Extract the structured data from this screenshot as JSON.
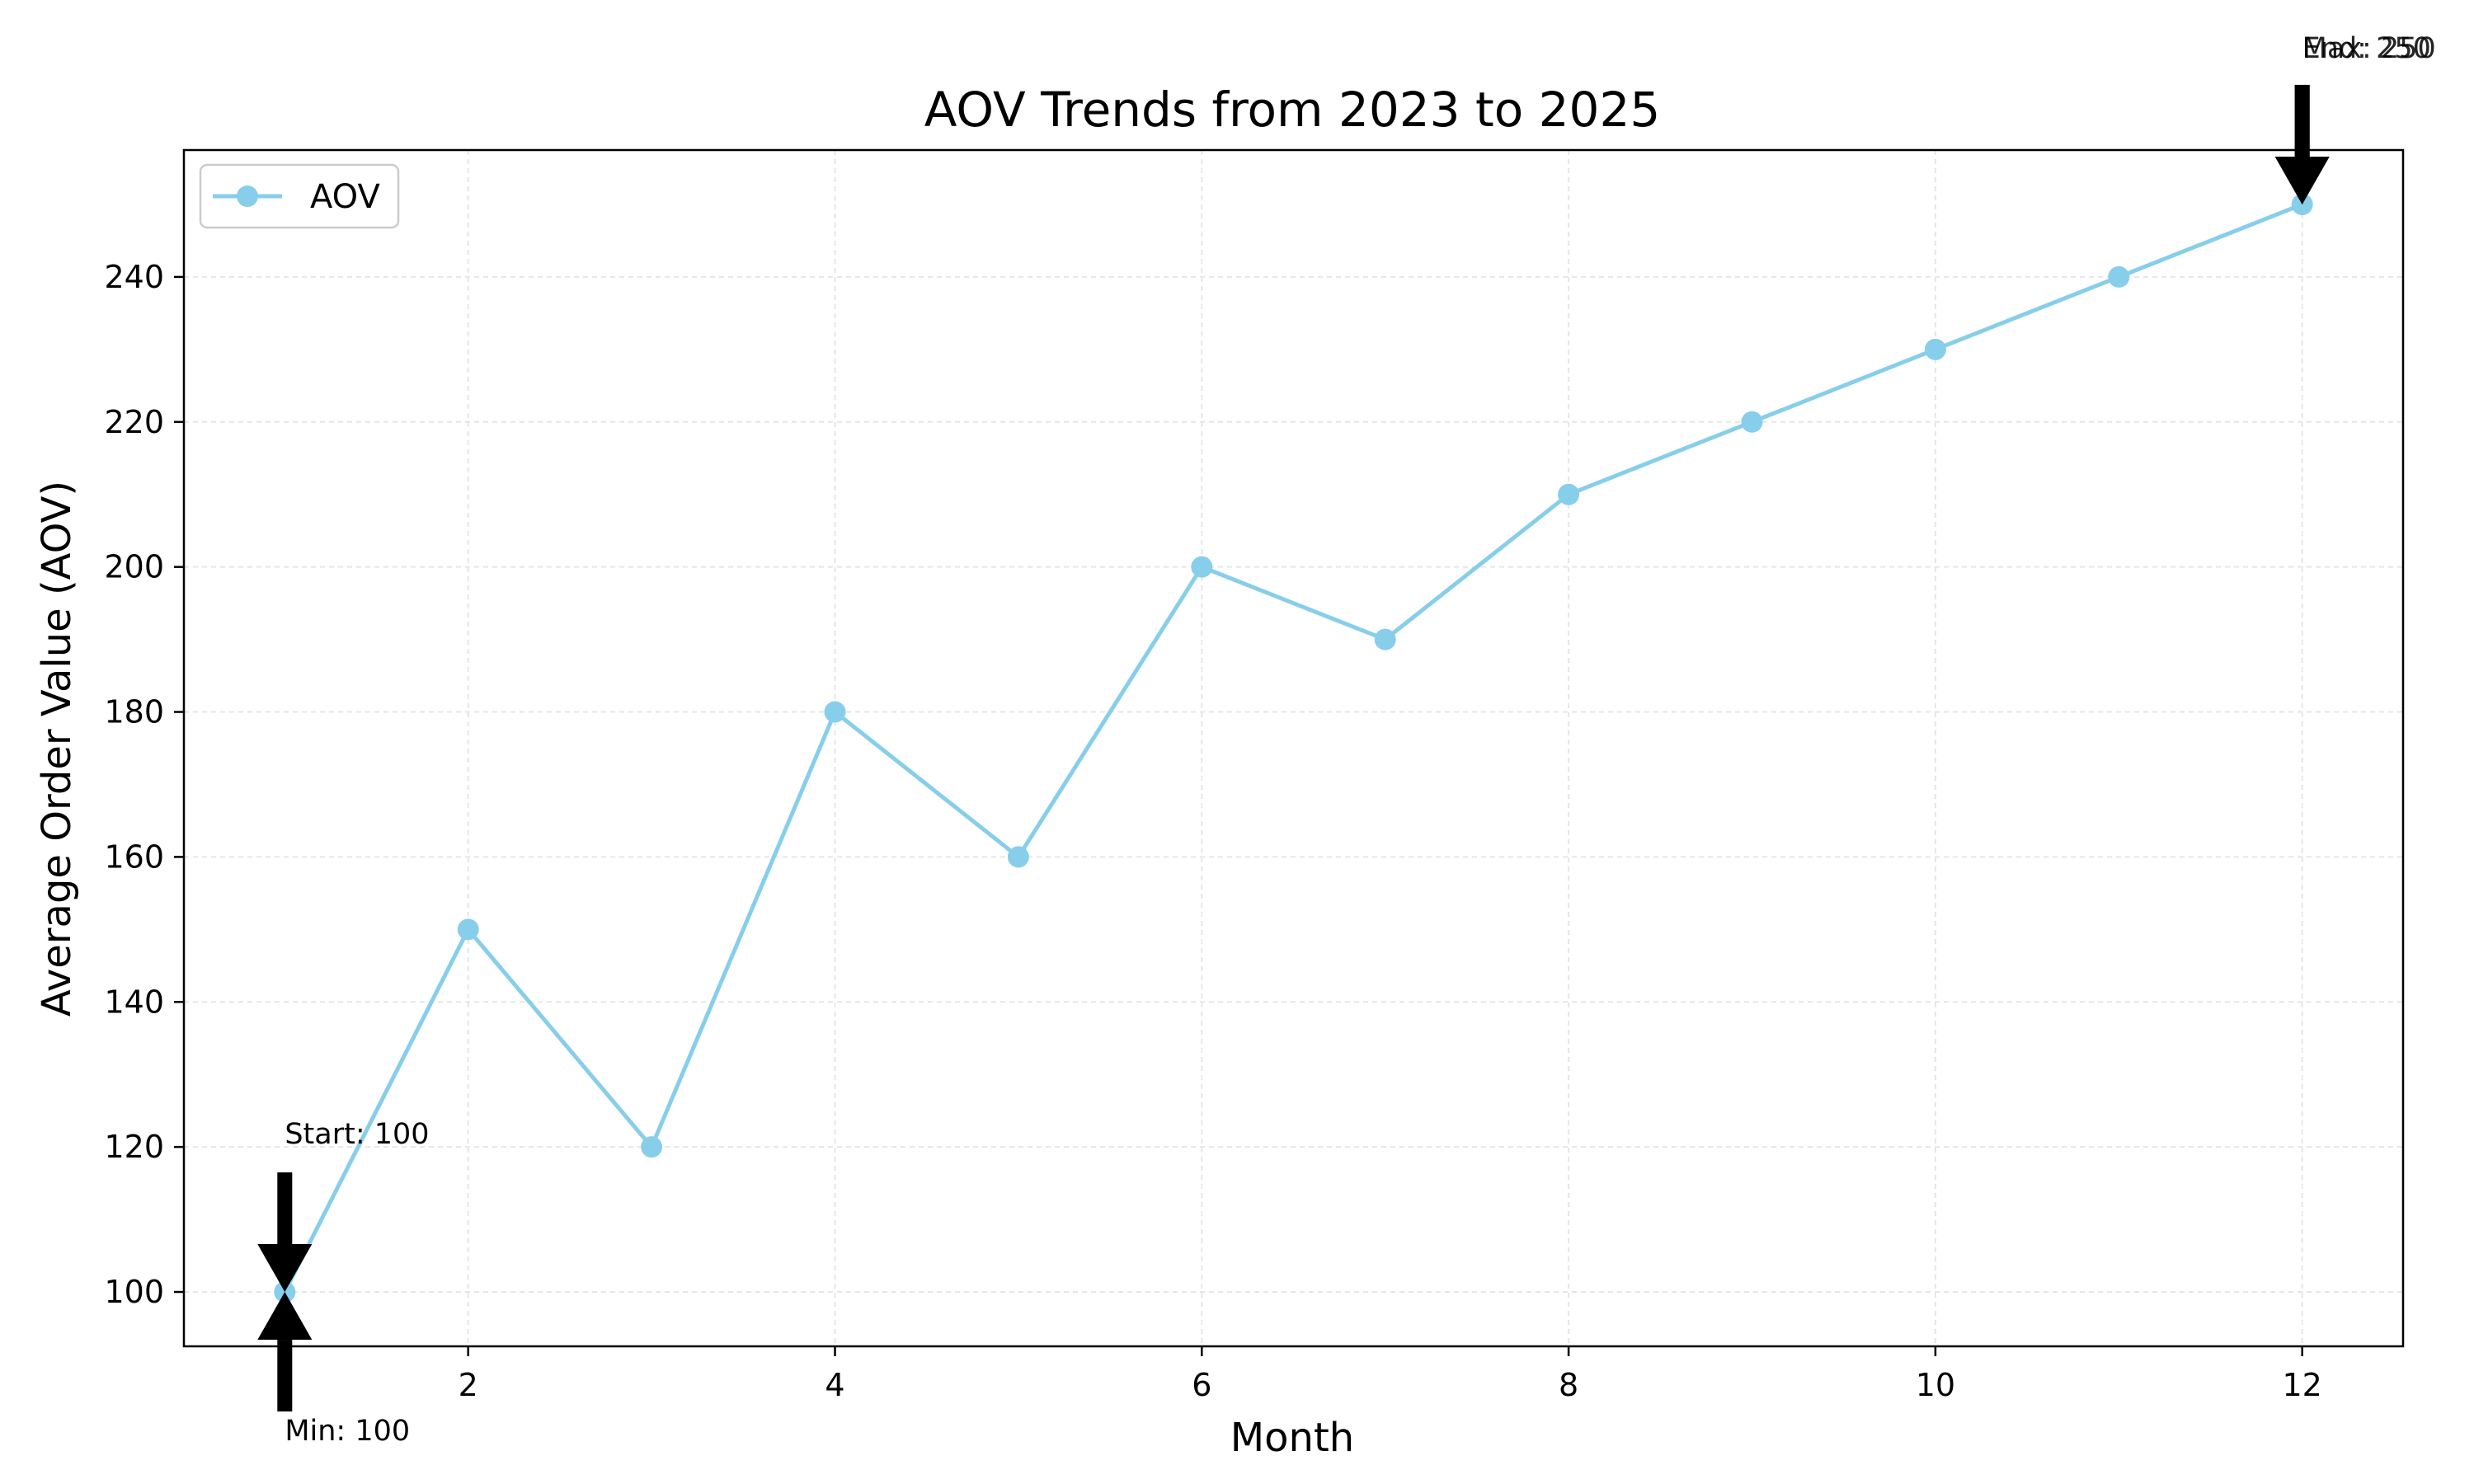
{
  "chart_data": {
    "type": "line",
    "title": "AOV Trends from 2023 to 2025",
    "xlabel": "Month",
    "ylabel": "Average Order Value (AOV)",
    "x": [
      1,
      2,
      3,
      4,
      5,
      6,
      7,
      8,
      9,
      10,
      11,
      12
    ],
    "series": [
      {
        "name": "AOV",
        "color": "#87CEEB",
        "values": [
          100,
          150,
          120,
          180,
          160,
          200,
          190,
          210,
          220,
          230,
          240,
          250
        ]
      }
    ],
    "xlim": [
      0.45,
      12.55
    ],
    "ylim": [
      92.5,
      257.5
    ],
    "xticks": [
      2,
      4,
      6,
      8,
      10,
      12
    ],
    "yticks": [
      100,
      120,
      140,
      160,
      180,
      200,
      220,
      240
    ],
    "grid": true,
    "legend_position": "top-left",
    "annotations": [
      {
        "text": "Start: 100",
        "x": 1,
        "y": 100,
        "arrow": "down"
      },
      {
        "text": "Min: 100",
        "x": 1,
        "y": 100,
        "arrow": "up"
      },
      {
        "text": "Max: 250",
        "x": 12,
        "y": 250,
        "arrow": "down"
      },
      {
        "text": "End: 250",
        "x": 12,
        "y": 250,
        "arrow": "down"
      }
    ]
  }
}
